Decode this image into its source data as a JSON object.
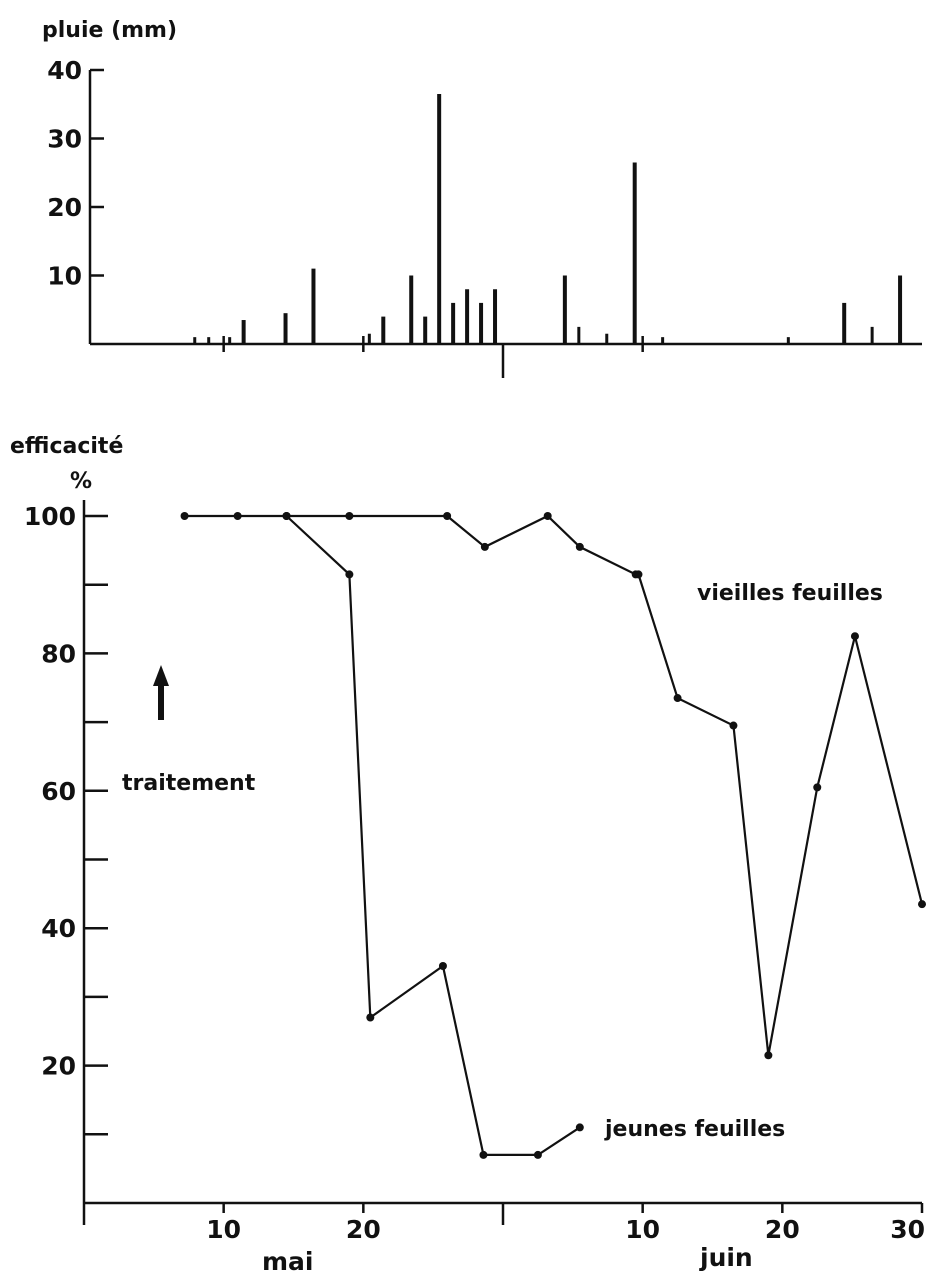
{
  "chart_data": [
    {
      "type": "bar",
      "ylabel": "pluie (mm)",
      "ylim": [
        0,
        40
      ],
      "yticks": [
        "10",
        "20",
        "30",
        "40"
      ],
      "xlim": [
        1,
        61
      ],
      "x": [
        8.5,
        9.5,
        11,
        12,
        15,
        17,
        21,
        22,
        24,
        25,
        26,
        27,
        28,
        29,
        30,
        35,
        36,
        38,
        40,
        42,
        51,
        55,
        57,
        59
      ],
      "values": [
        1,
        1,
        1,
        3.5,
        4.5,
        11,
        1.5,
        4,
        10,
        4,
        36.5,
        6,
        8,
        6,
        8,
        10,
        2.5,
        1.5,
        26.5,
        1,
        1,
        6,
        2.5,
        10
      ]
    },
    {
      "type": "line",
      "ylabel": "efficacité",
      "yunit": "%",
      "ylim": [
        0,
        100
      ],
      "yticks": [
        "20",
        "40",
        "60",
        "80",
        "100"
      ],
      "xlim": [
        1,
        61
      ],
      "xticks": [
        "10",
        "20",
        "10",
        "20",
        "30"
      ],
      "months": [
        "mai",
        "juin"
      ],
      "annotation": "traitement",
      "series": [
        {
          "name": "vieilles feuilles",
          "x": [
            8.2,
            12,
            15.5,
            20,
            27,
            29.7,
            34.2,
            36.5,
            40.5,
            40.7,
            43.5,
            47.5,
            50,
            53.5,
            56.2,
            61
          ],
          "y": [
            100,
            100,
            100,
            100,
            100,
            95.5,
            100,
            95.5,
            91.5,
            91.5,
            73.5,
            69.5,
            21.5,
            60.5,
            82.5,
            43.5
          ]
        },
        {
          "name": "jeunes feuilles",
          "x": [
            15.5,
            20,
            21.5,
            26.7,
            29.6,
            33.5,
            36.5
          ],
          "y": [
            100,
            91.5,
            27,
            34.5,
            7,
            7,
            11
          ]
        }
      ]
    }
  ]
}
